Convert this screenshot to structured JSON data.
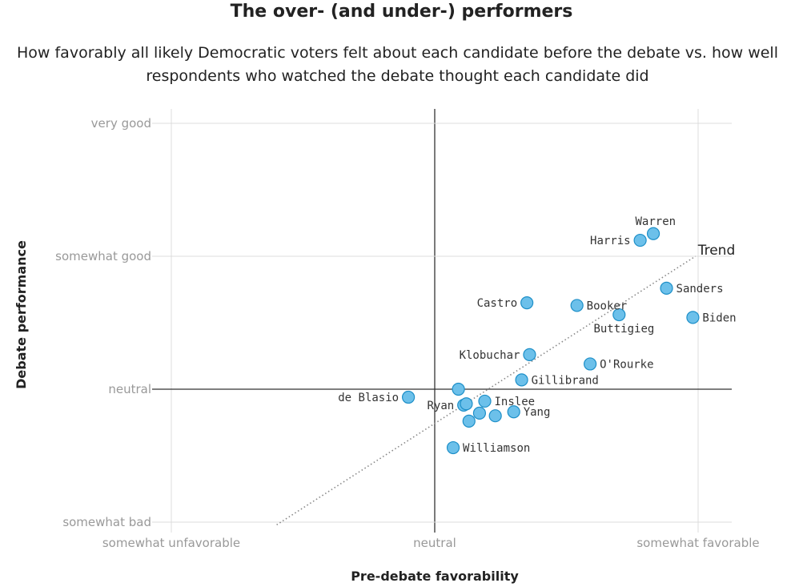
{
  "title": "The over- (and under-) performers",
  "subtitle_lines": [
    "How favorably all likely Democratic voters felt about each candidate before the debate vs. how well",
    "respondents who watched the debate thought each candidate did"
  ],
  "colors": {
    "point_fill": "#6cc0ea",
    "point_stroke": "#1d8fc8",
    "grid": "#dcdcdc",
    "zero_axis": "#333333",
    "trend": "#888888"
  },
  "chart_data": {
    "type": "scatter",
    "title": "The over- (and under-) performers",
    "xlabel": "Pre-debate favorability",
    "ylabel": "Debate performance",
    "xlim": [
      -1.1,
      1.1
    ],
    "ylim": [
      -1.0,
      2.0
    ],
    "grid": true,
    "x_ticks": [
      {
        "value": -1,
        "label": "somewhat unfavorable"
      },
      {
        "value": 0,
        "label": "neutral"
      },
      {
        "value": 1,
        "label": "somewhat favorable"
      }
    ],
    "y_ticks": [
      {
        "value": -1,
        "label": "somewhat bad"
      },
      {
        "value": 0,
        "label": "neutral"
      },
      {
        "value": 1,
        "label": "somewhat good"
      },
      {
        "value": 2,
        "label": "very good"
      }
    ],
    "points": [
      {
        "name": "Warren",
        "x": 0.83,
        "y": 1.17,
        "label": "Warren",
        "anchor": "above-left"
      },
      {
        "name": "Harris",
        "x": 0.78,
        "y": 1.12,
        "label": "Harris",
        "anchor": "left"
      },
      {
        "name": "Sanders",
        "x": 0.88,
        "y": 0.76,
        "label": "Sanders",
        "anchor": "right"
      },
      {
        "name": "Biden",
        "x": 0.98,
        "y": 0.54,
        "label": "Biden",
        "anchor": "right"
      },
      {
        "name": "Booker",
        "x": 0.54,
        "y": 0.63,
        "label": "Booker",
        "anchor": "right"
      },
      {
        "name": "Buttigieg",
        "x": 0.7,
        "y": 0.56,
        "label": "Buttigieg",
        "anchor": "below-left"
      },
      {
        "name": "Castro",
        "x": 0.35,
        "y": 0.65,
        "label": "Castro",
        "anchor": "left"
      },
      {
        "name": "Klobuchar",
        "x": 0.36,
        "y": 0.26,
        "label": "Klobuchar",
        "anchor": "left"
      },
      {
        "name": "O'Rourke",
        "x": 0.59,
        "y": 0.19,
        "label": "O'Rourke",
        "anchor": "right"
      },
      {
        "name": "Gillibrand",
        "x": 0.33,
        "y": 0.07,
        "label": "Gillibrand",
        "anchor": "right"
      },
      {
        "name": "de Blasio",
        "x": -0.1,
        "y": -0.06,
        "label": "de Blasio",
        "anchor": "left"
      },
      {
        "name": "Inslee",
        "x": 0.19,
        "y": -0.09,
        "label": "Inslee",
        "anchor": "right"
      },
      {
        "name": "Yang",
        "x": 0.3,
        "y": -0.17,
        "label": "Yang",
        "anchor": "right"
      },
      {
        "name": "Ryan",
        "x": 0.11,
        "y": -0.12,
        "label": "Ryan",
        "anchor": "left"
      },
      {
        "name": "Williamson",
        "x": 0.07,
        "y": -0.44,
        "label": "Williamson",
        "anchor": "right"
      },
      {
        "name": "",
        "x": 0.09,
        "y": 0.0,
        "label": "",
        "anchor": "none"
      },
      {
        "name": "",
        "x": 0.12,
        "y": -0.11,
        "label": "",
        "anchor": "none"
      },
      {
        "name": "",
        "x": 0.17,
        "y": -0.18,
        "label": "",
        "anchor": "none"
      },
      {
        "name": "",
        "x": 0.23,
        "y": -0.2,
        "label": "",
        "anchor": "none"
      },
      {
        "name": "",
        "x": 0.13,
        "y": -0.24,
        "label": "",
        "anchor": "none"
      }
    ],
    "trend": {
      "label": "Trend",
      "x": [
        -0.6,
        0.99
      ],
      "y": [
        -1.02,
        1.0
      ]
    }
  }
}
